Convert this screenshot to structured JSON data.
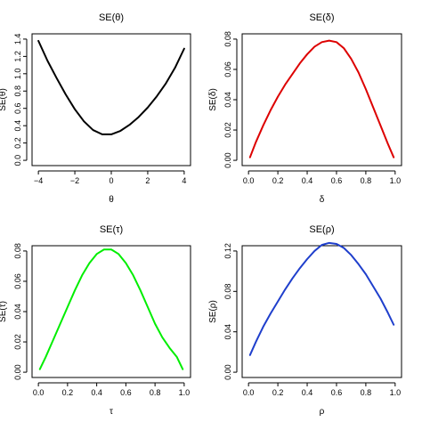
{
  "chart_data": [
    {
      "type": "line",
      "title": "SE(θ)",
      "xlabel": "θ",
      "ylabel": "SE(θ)",
      "xlim": [
        -4,
        4
      ],
      "ylim": [
        0.0,
        1.4
      ],
      "xticks": [
        -4,
        -2,
        0,
        2,
        4
      ],
      "xtick_labels": [
        "−4",
        "−2",
        "0",
        "2",
        "4"
      ],
      "yticks": [
        0.0,
        0.2,
        0.4,
        0.6,
        0.8,
        1.0,
        1.2,
        1.4
      ],
      "ytick_labels": [
        "0.0",
        "0.2",
        "0.4",
        "0.6",
        "0.8",
        "1.0",
        "1.2",
        "1.4"
      ],
      "grid": false,
      "color": "#000000",
      "series": [
        {
          "x": [
            -4.0,
            -3.5,
            -3.0,
            -2.5,
            -2.0,
            -1.5,
            -1.0,
            -0.5,
            0.0,
            0.5,
            1.0,
            1.5,
            2.0,
            2.5,
            3.0,
            3.5,
            4.0
          ],
          "values": [
            1.38,
            1.15,
            0.95,
            0.76,
            0.59,
            0.45,
            0.35,
            0.3,
            0.3,
            0.34,
            0.41,
            0.5,
            0.61,
            0.74,
            0.89,
            1.07,
            1.29
          ]
        }
      ]
    },
    {
      "type": "line",
      "title": "SE(δ)",
      "xlabel": "δ",
      "ylabel": "SE(δ)",
      "xlim": [
        0.0,
        1.0
      ],
      "ylim": [
        0.0,
        0.08
      ],
      "xticks": [
        0.0,
        0.2,
        0.4,
        0.6,
        0.8,
        1.0
      ],
      "xtick_labels": [
        "0.0",
        "0.2",
        "0.4",
        "0.6",
        "0.8",
        "1.0"
      ],
      "yticks": [
        0.0,
        0.02,
        0.04,
        0.06,
        0.08
      ],
      "ytick_labels": [
        "0.00",
        "0.02",
        "0.04",
        "0.06",
        "0.08"
      ],
      "grid": false,
      "color": "#dd0000",
      "series": [
        {
          "x": [
            0.01,
            0.05,
            0.1,
            0.15,
            0.2,
            0.25,
            0.3,
            0.35,
            0.4,
            0.45,
            0.5,
            0.55,
            0.6,
            0.65,
            0.7,
            0.75,
            0.8,
            0.85,
            0.9,
            0.95,
            0.99
          ],
          "values": [
            0.002,
            0.012,
            0.023,
            0.033,
            0.042,
            0.05,
            0.057,
            0.064,
            0.07,
            0.075,
            0.078,
            0.079,
            0.078,
            0.074,
            0.067,
            0.058,
            0.047,
            0.035,
            0.023,
            0.011,
            0.002
          ]
        }
      ]
    },
    {
      "type": "line",
      "title": "SE(τ)",
      "xlabel": "τ",
      "ylabel": "SE(τ)",
      "xlim": [
        0.0,
        1.0
      ],
      "ylim": [
        0.0,
        0.08
      ],
      "xticks": [
        0.0,
        0.2,
        0.4,
        0.6,
        0.8,
        1.0
      ],
      "xtick_labels": [
        "0.0",
        "0.2",
        "0.4",
        "0.6",
        "0.8",
        "1.0"
      ],
      "yticks": [
        0.0,
        0.02,
        0.04,
        0.06,
        0.08
      ],
      "ytick_labels": [
        "0.00",
        "0.02",
        "0.04",
        "0.06",
        "0.08"
      ],
      "grid": false,
      "color": "#00ee00",
      "series": [
        {
          "x": [
            0.01,
            0.05,
            0.1,
            0.15,
            0.2,
            0.25,
            0.3,
            0.35,
            0.4,
            0.45,
            0.5,
            0.55,
            0.6,
            0.65,
            0.7,
            0.75,
            0.8,
            0.85,
            0.9,
            0.95,
            0.99
          ],
          "values": [
            0.002,
            0.01,
            0.021,
            0.032,
            0.043,
            0.054,
            0.064,
            0.072,
            0.078,
            0.081,
            0.081,
            0.078,
            0.072,
            0.064,
            0.054,
            0.043,
            0.032,
            0.023,
            0.016,
            0.01,
            0.002
          ]
        }
      ]
    },
    {
      "type": "line",
      "title": "SE(ρ)",
      "xlabel": "ρ",
      "ylabel": "SE(ρ)",
      "xlim": [
        0.0,
        1.0
      ],
      "ylim": [
        0.0,
        0.12
      ],
      "xticks": [
        0.0,
        0.2,
        0.4,
        0.6,
        0.8,
        1.0
      ],
      "xtick_labels": [
        "0.0",
        "0.2",
        "0.4",
        "0.6",
        "0.8",
        "1.0"
      ],
      "yticks": [
        0.0,
        0.04,
        0.08,
        0.12
      ],
      "ytick_labels": [
        "0.00",
        "0.04",
        "0.08",
        "0.12"
      ],
      "grid": false,
      "color": "#1f3fcc",
      "series": [
        {
          "x": [
            0.01,
            0.05,
            0.1,
            0.15,
            0.2,
            0.25,
            0.3,
            0.35,
            0.4,
            0.45,
            0.5,
            0.55,
            0.6,
            0.65,
            0.7,
            0.75,
            0.8,
            0.85,
            0.9,
            0.95,
            0.99
          ],
          "values": [
            0.017,
            0.03,
            0.045,
            0.058,
            0.07,
            0.082,
            0.093,
            0.103,
            0.112,
            0.12,
            0.126,
            0.128,
            0.127,
            0.123,
            0.116,
            0.107,
            0.097,
            0.085,
            0.073,
            0.059,
            0.047
          ]
        }
      ]
    }
  ]
}
